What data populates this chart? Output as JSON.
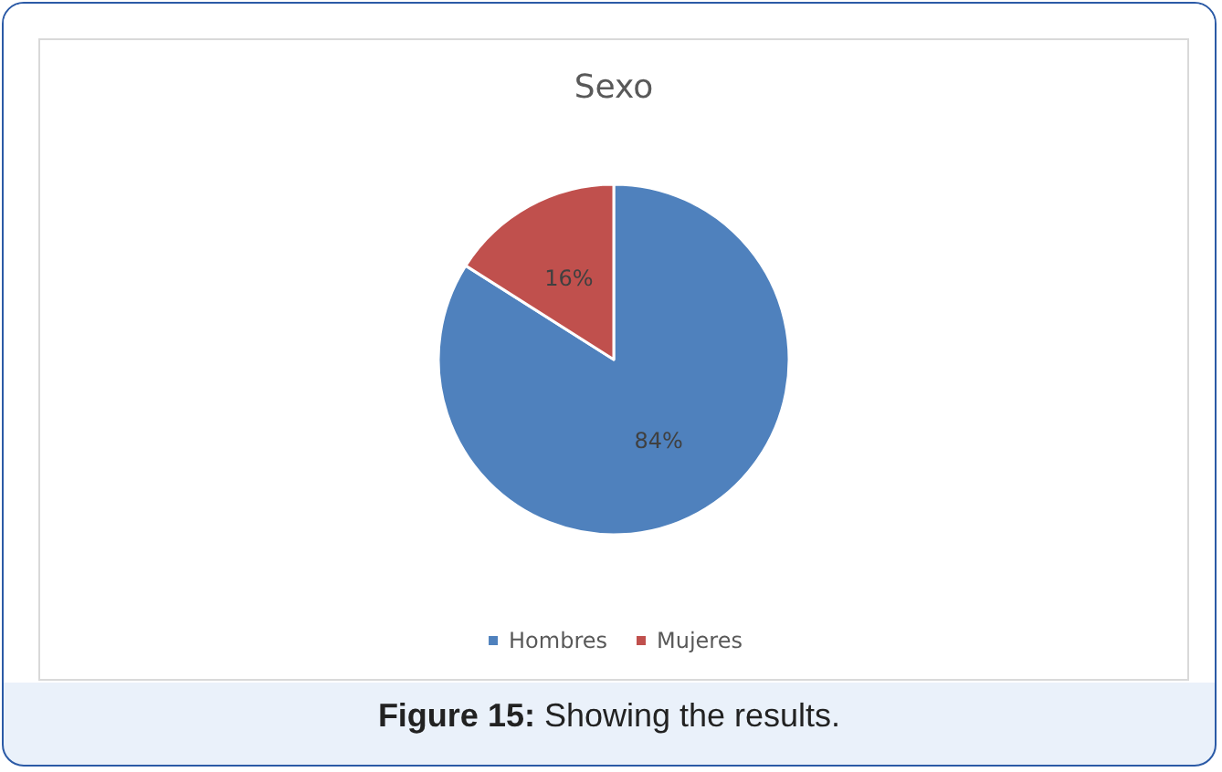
{
  "chart_data": {
    "type": "pie",
    "title": "Sexo",
    "categories": [
      "Hombres",
      "Mujeres"
    ],
    "values": [
      84,
      16
    ],
    "colors": [
      "#4f81bd",
      "#c0504d"
    ],
    "value_labels": [
      "84%",
      "16%"
    ],
    "legend": "bottom",
    "annotations": [
      "Figure 15: Showing the results."
    ]
  }
}
